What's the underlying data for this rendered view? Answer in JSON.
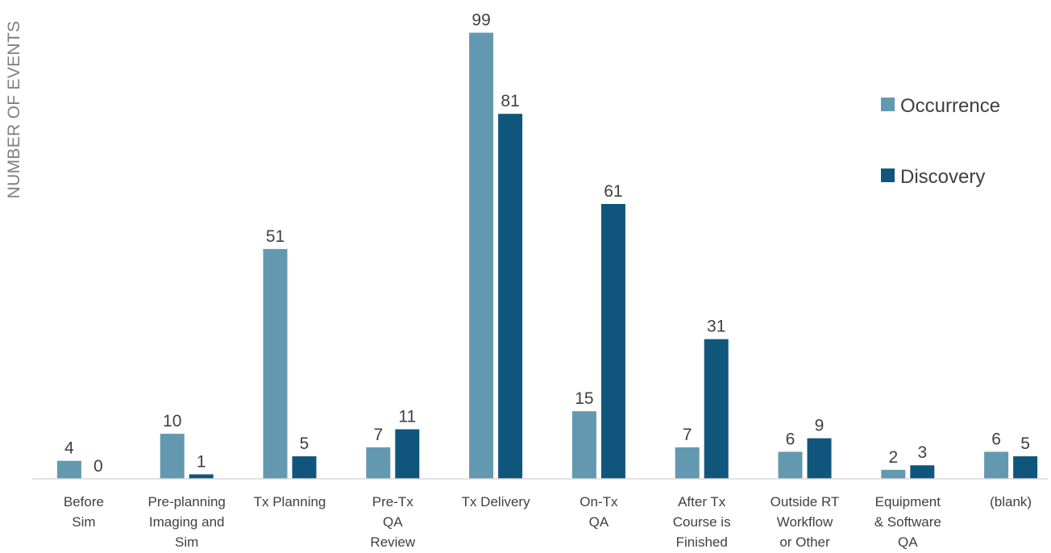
{
  "chart_data": {
    "type": "bar",
    "title": "",
    "xlabel": "",
    "ylabel": "NUMBER OF EVENTS",
    "ylim": [
      0,
      100
    ],
    "grid": false,
    "legend_position": "right",
    "categories": [
      [
        "Before",
        "Sim"
      ],
      [
        "Pre-planning",
        "Imaging and",
        "Sim"
      ],
      [
        "Tx Planning"
      ],
      [
        "Pre-Tx",
        "QA",
        "Review"
      ],
      [
        "Tx Delivery"
      ],
      [
        "On-Tx",
        "QA"
      ],
      [
        "After Tx",
        "Course is",
        "Finished"
      ],
      [
        "Outside RT",
        "Workflow",
        "or Other"
      ],
      [
        "Equipment",
        "& Software",
        "QA"
      ],
      [
        "(blank)"
      ]
    ],
    "series": [
      {
        "name": "Occurrence",
        "color": "#6399b0",
        "values": [
          4,
          10,
          51,
          7,
          99,
          15,
          7,
          6,
          2,
          6
        ]
      },
      {
        "name": "Discovery",
        "color": "#10567c",
        "values": [
          0,
          1,
          5,
          11,
          81,
          61,
          31,
          9,
          3,
          5
        ]
      }
    ]
  }
}
